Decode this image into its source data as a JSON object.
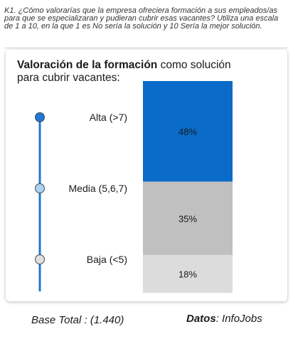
{
  "question": "K1. ¿Cómo valorarías que la empresa ofreciera formación a sus empleados/as para que se especializaran y pudieran cubrir esas vacantes? Utiliza una escala de 1 a 10, en la que 1 es No sería la solución y 10 Sería la mejor solución.",
  "chart_title_bold": "Valoración de la formación",
  "chart_title_rest": " como solución para cubrir vacantes:",
  "footer": {
    "base": "Base Total : (1.440)",
    "source_label": "Datos",
    "source_value": ": InfoJobs"
  },
  "chart_data": {
    "type": "bar",
    "stacked": true,
    "orientation": "vertical",
    "title": "Valoración de la formación como solución para cubrir vacantes:",
    "categories": [
      "Alta (>7)",
      "Media (5,6,7)",
      "Baja (<5)"
    ],
    "values": [
      48,
      35,
      18
    ],
    "value_labels": [
      "48%",
      "35%",
      "18%"
    ],
    "unit": "%",
    "colors": [
      "#0a6bc8",
      "#c0c0c0",
      "#dcdcdc"
    ],
    "marker_colors": [
      "#1e78d2",
      "#a9d4f5",
      "#e0e0e0"
    ],
    "scale_line_color": "#1e78d2",
    "legend": "none",
    "grid": false
  }
}
